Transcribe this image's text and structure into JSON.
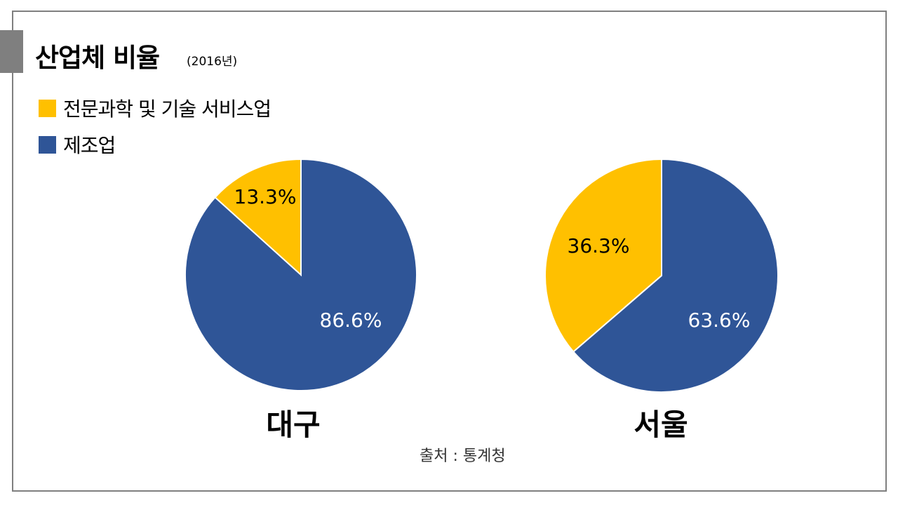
{
  "header": {
    "title": "산업체 비율",
    "subtitle": "(2016년)"
  },
  "legend": [
    {
      "label": "전문과학 및 기술 서비스업",
      "color": "#FFC000"
    },
    {
      "label": "제조업",
      "color": "#2F5597"
    }
  ],
  "source": "출처 : 통계청",
  "chart_data": [
    {
      "type": "pie",
      "title": "대구",
      "slices": [
        {
          "category": "전문과학 및 기술 서비스업",
          "value": 13.3,
          "label": "13.3%",
          "color": "#FFC000"
        },
        {
          "category": "제조업",
          "value": 86.6,
          "label": "86.6%",
          "color": "#2F5597"
        }
      ]
    },
    {
      "type": "pie",
      "title": "서울",
      "slices": [
        {
          "category": "전문과학 및 기술 서비스업",
          "value": 36.3,
          "label": "36.3%",
          "color": "#FFC000"
        },
        {
          "category": "제조업",
          "value": 63.6,
          "label": "63.6%",
          "color": "#2F5597"
        }
      ]
    }
  ]
}
